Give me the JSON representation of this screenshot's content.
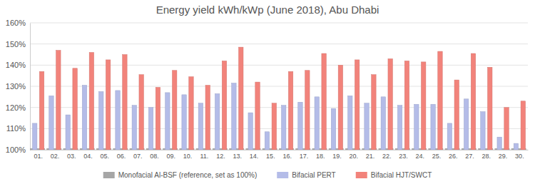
{
  "chart_data": {
    "type": "bar",
    "title": "Energy yield kWh/kWp (June 2018), Abu Dhabi",
    "categories": [
      "01.",
      "02.",
      "03.",
      "04.",
      "05.",
      "06.",
      "07.",
      "08.",
      "09.",
      "10.",
      "11.",
      "12.",
      "13.",
      "14.",
      "15.",
      "16.",
      "17.",
      "18.",
      "19.",
      "20.",
      "21.",
      "22.",
      "23.",
      "24.",
      "25.",
      "26.",
      "27.",
      "28.",
      "29.",
      "30."
    ],
    "series": [
      {
        "name": "Monofacial Al-BSF (reference, set as 100%)",
        "color": "#a6a6a6",
        "values": [
          100,
          100,
          100,
          100,
          100,
          100,
          100,
          100,
          100,
          100,
          100,
          100,
          100,
          100,
          100,
          100,
          100,
          100,
          100,
          100,
          100,
          100,
          100,
          100,
          100,
          100,
          100,
          100,
          100,
          100
        ]
      },
      {
        "name": "Bifacial PERT",
        "color": "#b4bce8",
        "values": [
          112.5,
          125.5,
          116.5,
          130.5,
          127.5,
          128,
          121,
          120,
          127,
          126,
          122,
          126.5,
          131.5,
          117.5,
          108.5,
          121,
          122.5,
          125,
          119.5,
          125.5,
          122,
          125,
          121,
          121.5,
          121.5,
          112.5,
          124,
          118,
          106,
          103
        ]
      },
      {
        "name": "Bifacial HJT/SWCT",
        "color": "#f2837b",
        "values": [
          137,
          147,
          138.5,
          146,
          142.5,
          145,
          135.5,
          129.5,
          137.5,
          134.5,
          130.5,
          142,
          148.5,
          132,
          122,
          137,
          137.5,
          145.5,
          140,
          142.5,
          135.5,
          143,
          142,
          141.5,
          146.5,
          133,
          145.5,
          139,
          120,
          123
        ]
      }
    ],
    "ylim": [
      100,
      160
    ],
    "yticks": [
      {
        "value": 100,
        "label": "100%"
      },
      {
        "value": 110,
        "label": "110%"
      },
      {
        "value": 120,
        "label": "120%"
      },
      {
        "value": 130,
        "label": "130%"
      },
      {
        "value": 140,
        "label": "140%"
      },
      {
        "value": 150,
        "label": "150%"
      },
      {
        "value": 160,
        "label": "160%"
      }
    ],
    "grid": true,
    "legend": "bottom"
  }
}
